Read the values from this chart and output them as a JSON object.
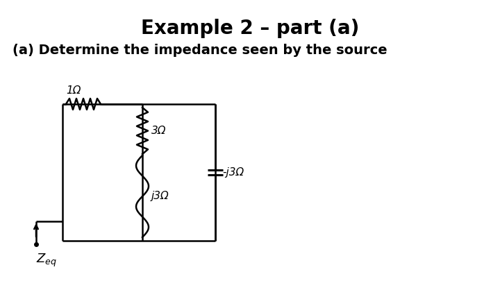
{
  "title": "Example 2 – part (a)",
  "subtitle": "(a) Determine the impedance seen by the source",
  "title_fontsize": 20,
  "subtitle_fontsize": 14,
  "background_color": "#ffffff",
  "line_color": "#000000",
  "label_1ohm": "1Ω",
  "label_3ohm": "3Ω",
  "label_j3ohm": "j3Ω",
  "label_neg_j3ohm": "-j3Ω",
  "label_zeq": "Z",
  "label_zeq_sub": "eq"
}
